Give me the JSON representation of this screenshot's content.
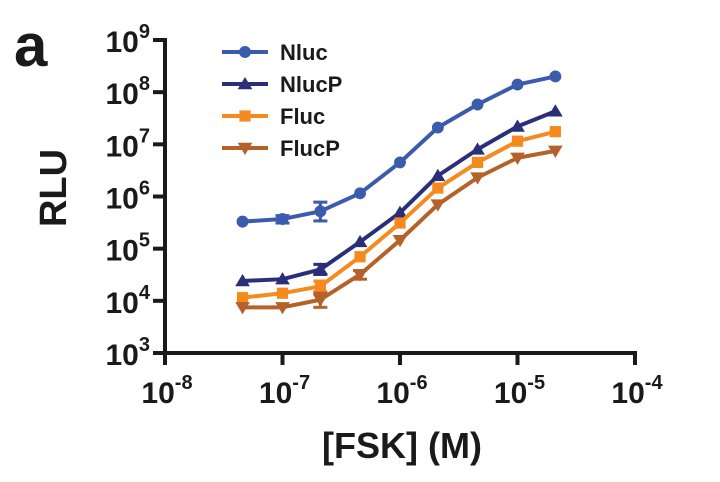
{
  "panel_label": "a",
  "chart_data": {
    "type": "line",
    "title": "",
    "xlabel": "[FSK] (M)",
    "ylabel": "RLU",
    "x_scale": "log",
    "y_scale": "log",
    "xlim": [
      1e-08,
      0.0001
    ],
    "ylim": [
      1000.0,
      1000000000.0
    ],
    "x_ticks": [
      {
        "value": 1e-08,
        "base": "10",
        "exp": "-8"
      },
      {
        "value": 1e-07,
        "base": "10",
        "exp": "-7"
      },
      {
        "value": 1e-06,
        "base": "10",
        "exp": "-6"
      },
      {
        "value": 1e-05,
        "base": "10",
        "exp": "-5"
      },
      {
        "value": 0.0001,
        "base": "10",
        "exp": "-4"
      }
    ],
    "y_ticks": [
      {
        "value": 1000.0,
        "base": "10",
        "exp": "3"
      },
      {
        "value": 10000.0,
        "base": "10",
        "exp": "4"
      },
      {
        "value": 100000.0,
        "base": "10",
        "exp": "5"
      },
      {
        "value": 1000000.0,
        "base": "10",
        "exp": "6"
      },
      {
        "value": 10000000.0,
        "base": "10",
        "exp": "7"
      },
      {
        "value": 100000000.0,
        "base": "10",
        "exp": "8"
      },
      {
        "value": 1000000000.0,
        "base": "10",
        "exp": "9"
      }
    ],
    "grid": false,
    "legend_position": "top-left",
    "x": [
      4.57e-08,
      1e-07,
      2.1e-07,
      4.57e-07,
      1e-06,
      2.1e-06,
      4.57e-06,
      1e-05,
      2.1e-05
    ],
    "series": [
      {
        "name": "Nluc",
        "marker": "circle",
        "color": "#3b5cad",
        "values": [
          330000.0,
          370000.0,
          520000.0,
          1150000.0,
          4500000.0,
          21000000.0,
          58000000.0,
          140000000.0,
          200000000.0
        ],
        "err_low": [
          null,
          310000.0,
          340000.0,
          null,
          null,
          null,
          null,
          null,
          null
        ],
        "err_high": [
          null,
          430000.0,
          780000.0,
          null,
          null,
          null,
          null,
          null,
          null
        ]
      },
      {
        "name": "NlucP",
        "marker": "triangle-up",
        "color": "#2b2f7a",
        "values": [
          24000.0,
          26000.0,
          40000.0,
          135000.0,
          490000.0,
          2500000.0,
          8000000.0,
          22000000.0,
          43000000.0
        ],
        "err_low": [
          null,
          null,
          32000.0,
          null,
          null,
          null,
          null,
          null,
          null
        ],
        "err_high": [
          null,
          null,
          50000.0,
          null,
          null,
          null,
          null,
          null,
          null
        ]
      },
      {
        "name": "Fluc",
        "marker": "square",
        "color": "#f58a1f",
        "values": [
          11500.0,
          14000.0,
          19000.0,
          70000.0,
          310000.0,
          1450000.0,
          4500000.0,
          11500000.0,
          17500000.0
        ],
        "err_low": [
          null,
          null,
          15000.0,
          null,
          null,
          null,
          null,
          null,
          null
        ],
        "err_high": [
          null,
          null,
          24000.0,
          null,
          null,
          null,
          null,
          null,
          null
        ]
      },
      {
        "name": "FlucP",
        "marker": "triangle-down",
        "color": "#b5622a",
        "values": [
          7500.0,
          7500.0,
          10500.0,
          32000.0,
          145000.0,
          700000.0,
          2300000.0,
          5500000.0,
          7500000.0
        ],
        "err_low": [
          null,
          null,
          7500.0,
          26000.0,
          null,
          null,
          null,
          null,
          null
        ],
        "err_high": [
          null,
          null,
          14000.0,
          38000.0,
          null,
          null,
          null,
          null,
          null
        ]
      }
    ]
  }
}
